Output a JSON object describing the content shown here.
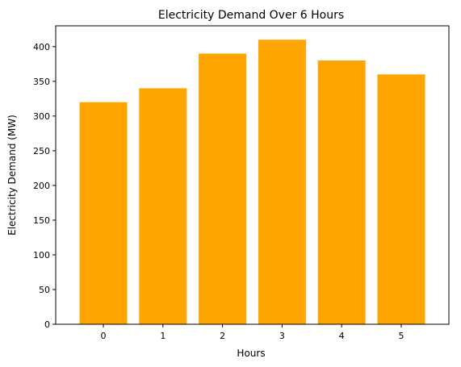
{
  "chart_data": {
    "type": "bar",
    "title": "Electricity Demand Over 6 Hours",
    "xlabel": "Hours",
    "ylabel": "Electricity Demand (MW)",
    "categories": [
      "0",
      "1",
      "2",
      "3",
      "4",
      "5"
    ],
    "values": [
      320,
      340,
      390,
      410,
      380,
      360
    ],
    "ylim": [
      0,
      430
    ],
    "yticks": [
      0,
      50,
      100,
      150,
      200,
      250,
      300,
      350,
      400
    ],
    "grid": false,
    "colors": {
      "bar": "#ffa500"
    }
  }
}
